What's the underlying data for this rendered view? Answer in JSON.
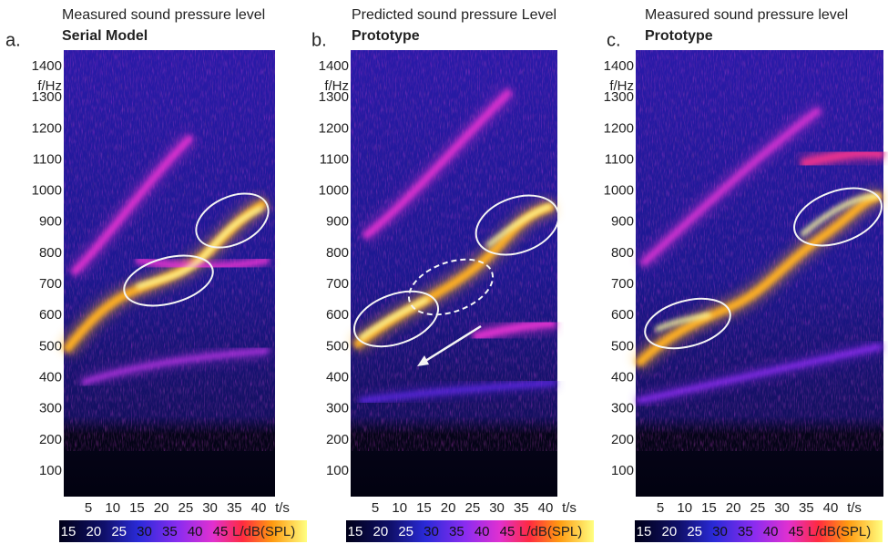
{
  "panels": [
    {
      "letter": "a.",
      "title": "Measured sound pressure level",
      "subtitle": "Serial Model",
      "y_label": "f/Hz",
      "yticks": [
        1400,
        1300,
        1200,
        1100,
        1000,
        900,
        800,
        700,
        600,
        500,
        400,
        300,
        200,
        100
      ],
      "x_label": "t/s",
      "xticks": [
        5,
        10,
        15,
        20,
        25,
        30,
        35,
        40
      ],
      "colorbar": {
        "ticks": [
          15,
          20,
          25,
          30,
          35,
          40,
          45
        ],
        "label": "L/dB(SPL)"
      }
    },
    {
      "letter": "b.",
      "title": "Predicted sound pressure Level",
      "subtitle": "Prototype",
      "y_label": "f/Hz",
      "yticks": [
        1400,
        1300,
        1200,
        1100,
        1000,
        900,
        800,
        700,
        600,
        500,
        400,
        300,
        200,
        100
      ],
      "x_label": "t/s",
      "xticks": [
        5,
        10,
        15,
        20,
        25,
        30,
        35,
        40
      ],
      "colorbar": {
        "ticks": [
          15,
          20,
          25,
          30,
          35,
          40,
          45
        ],
        "label": "L/dB(SPL)"
      }
    },
    {
      "letter": "c.",
      "title": "Measured sound pressure level",
      "subtitle": "Prototype",
      "y_label": "f/Hz",
      "yticks": [
        1400,
        1300,
        1200,
        1100,
        1000,
        900,
        800,
        700,
        600,
        500,
        400,
        300,
        200,
        100
      ],
      "x_label": "t/s",
      "xticks": [
        5,
        10,
        15,
        20,
        25,
        30,
        35,
        40
      ],
      "colorbar": {
        "ticks": [
          15,
          20,
          25,
          30,
          35,
          40,
          45
        ],
        "label": "L/dB(SPL)"
      }
    }
  ]
}
